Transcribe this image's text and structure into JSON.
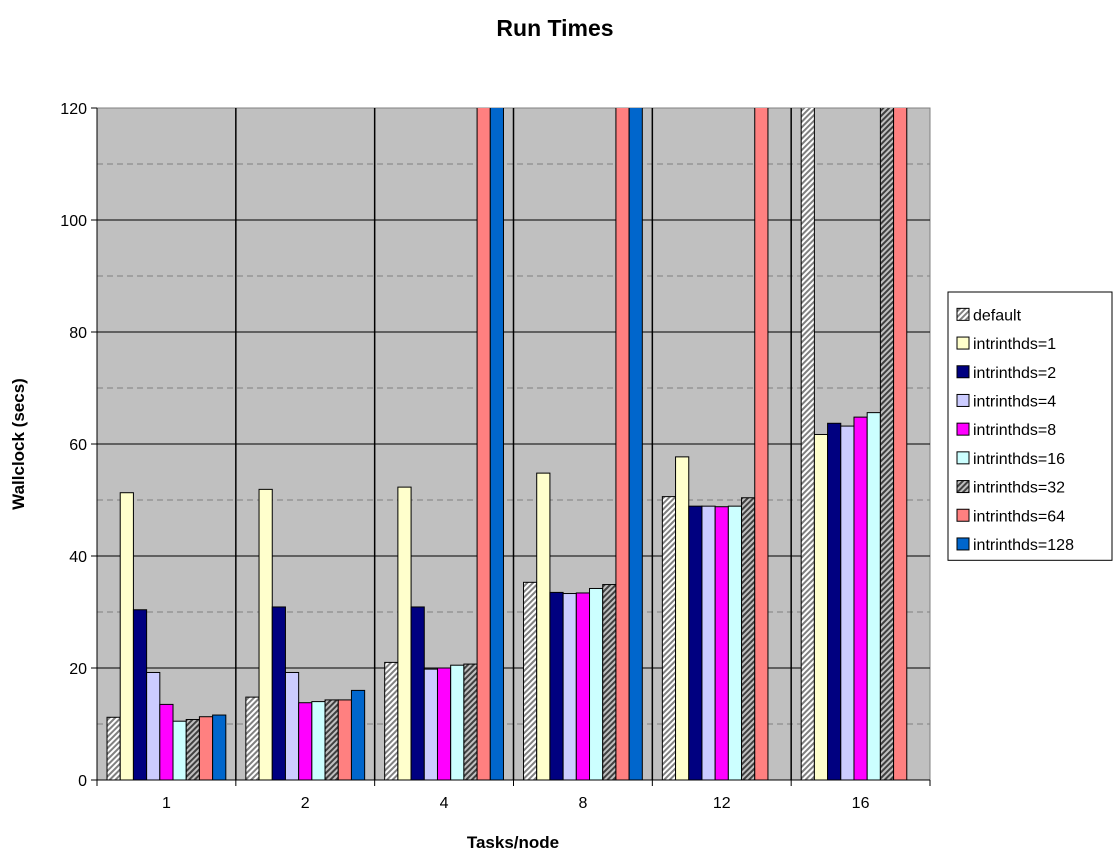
{
  "chart_data": {
    "type": "bar",
    "title": "Run Times",
    "xlabel": "Tasks/node",
    "ylabel": "Wallclock (secs)",
    "ylim": [
      0,
      120
    ],
    "yticks": [
      0,
      20,
      40,
      60,
      80,
      100,
      120
    ],
    "categories": [
      "1",
      "2",
      "4",
      "8",
      "12",
      "16"
    ],
    "grid": "dashed horizontal every 10",
    "legend": "right",
    "series": [
      {
        "name": "default",
        "color": "#c8c8c8",
        "pattern": "hatch",
        "values": [
          11.2,
          14.8,
          21.0,
          35.3,
          50.6,
          130
        ]
      },
      {
        "name": "intrinthds=1",
        "color": "#ffffcc",
        "values": [
          51.3,
          51.9,
          52.3,
          54.8,
          57.7,
          61.7
        ]
      },
      {
        "name": "intrinthds=2",
        "color": "#000080",
        "values": [
          30.4,
          30.9,
          30.9,
          33.5,
          48.9,
          63.7
        ]
      },
      {
        "name": "intrinthds=4",
        "color": "#ccccff",
        "values": [
          19.2,
          19.2,
          19.8,
          33.3,
          48.9,
          63.2
        ]
      },
      {
        "name": "intrinthds=8",
        "color": "#ff00ff",
        "values": [
          13.5,
          13.8,
          20.0,
          33.4,
          48.8,
          64.8
        ]
      },
      {
        "name": "intrinthds=16",
        "color": "#ccffff",
        "values": [
          10.5,
          14.0,
          20.5,
          34.2,
          48.9,
          65.6
        ]
      },
      {
        "name": "intrinthds=32",
        "color": "#a0a0a0",
        "pattern": "hatch",
        "values": [
          10.8,
          14.3,
          20.7,
          34.9,
          50.4,
          130
        ]
      },
      {
        "name": "intrinthds=64",
        "color": "#ff8080",
        "values": [
          11.3,
          14.3,
          130,
          130,
          130,
          130
        ]
      },
      {
        "name": "intrinthds=128",
        "color": "#0066cc",
        "values": [
          11.6,
          16.0,
          130,
          130,
          null,
          null
        ]
      }
    ]
  }
}
